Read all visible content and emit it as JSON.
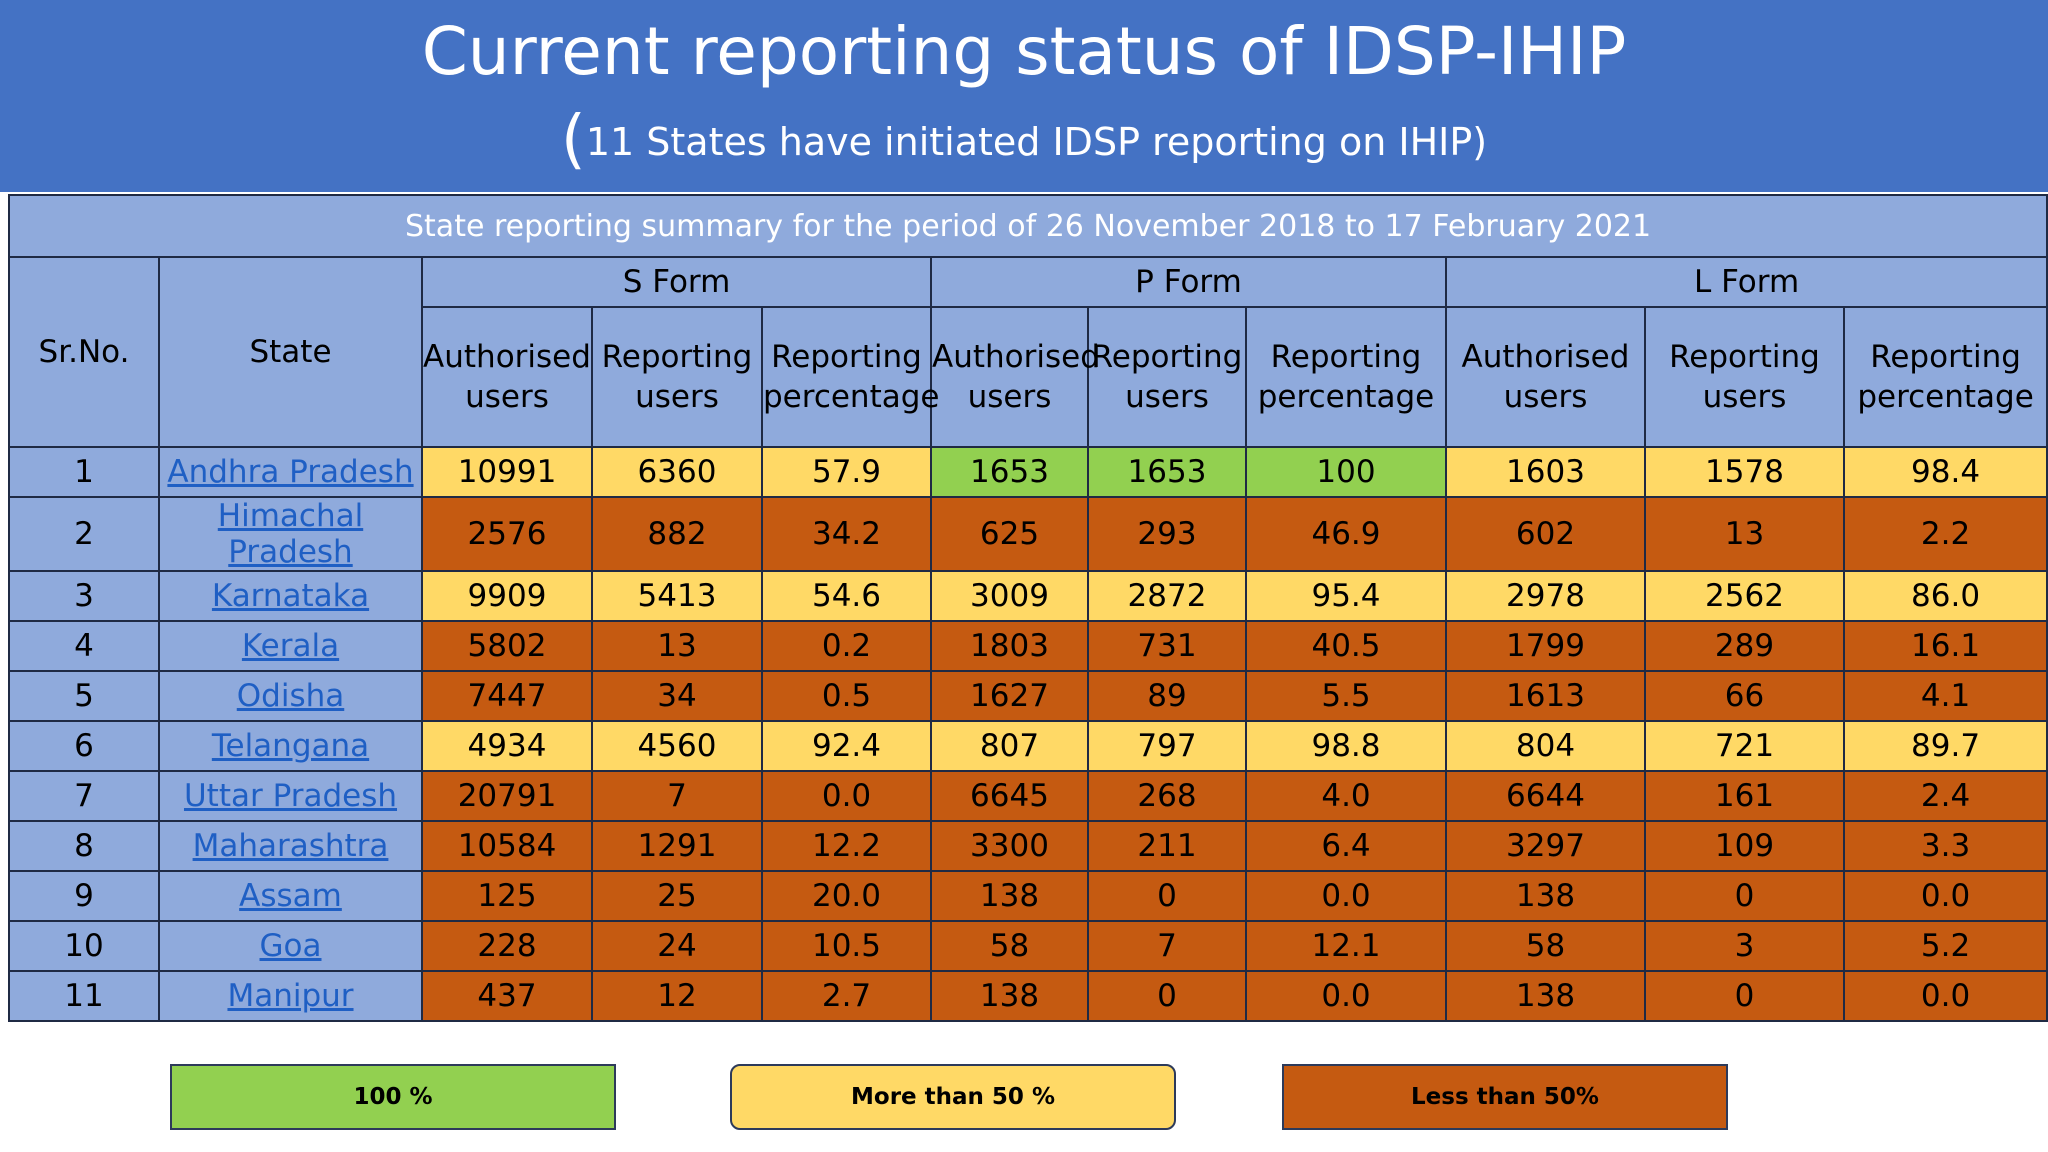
{
  "header": {
    "title": "Current reporting status of IDSP-IHIP",
    "subtitle_paren_open": "(",
    "subtitle": "11 States have initiated IDSP reporting on IHIP)"
  },
  "table": {
    "banner": "State reporting summary for the period of 26 November 2018 to 17 February 2021",
    "col_srno": "Sr.No.",
    "col_state": "State",
    "groups": [
      "S Form",
      "P Form",
      "L Form"
    ],
    "sub_headers": [
      [
        "Authorised",
        "users"
      ],
      [
        "Reporting",
        "users"
      ],
      [
        "Reporting",
        "percentage"
      ]
    ],
    "rows": [
      {
        "sr": "1",
        "state": "Andhra Pradesh",
        "values": [
          "10991",
          "6360",
          "57.9",
          "1653",
          "1653",
          "100",
          "1603",
          "1578",
          "98.4"
        ],
        "status": [
          "yellow",
          "green",
          "yellow"
        ]
      },
      {
        "sr": "2",
        "state": "Himachal Pradesh",
        "values": [
          "2576",
          "882",
          "34.2",
          "625",
          "293",
          "46.9",
          "602",
          "13",
          "2.2"
        ],
        "status": [
          "orange",
          "orange",
          "orange"
        ]
      },
      {
        "sr": "3",
        "state": "Karnataka",
        "values": [
          "9909",
          "5413",
          "54.6",
          "3009",
          "2872",
          "95.4",
          "2978",
          "2562",
          "86.0"
        ],
        "status": [
          "yellow",
          "yellow",
          "yellow"
        ]
      },
      {
        "sr": "4",
        "state": "Kerala",
        "values": [
          "5802",
          "13",
          "0.2",
          "1803",
          "731",
          "40.5",
          "1799",
          "289",
          "16.1"
        ],
        "status": [
          "orange",
          "orange",
          "orange"
        ]
      },
      {
        "sr": "5",
        "state": "Odisha",
        "values": [
          "7447",
          "34",
          "0.5",
          "1627",
          "89",
          "5.5",
          "1613",
          "66",
          "4.1"
        ],
        "status": [
          "orange",
          "orange",
          "orange"
        ]
      },
      {
        "sr": "6",
        "state": "Telangana",
        "values": [
          "4934",
          "4560",
          "92.4",
          "807",
          "797",
          "98.8",
          "804",
          "721",
          "89.7"
        ],
        "status": [
          "yellow",
          "yellow",
          "yellow"
        ]
      },
      {
        "sr": "7",
        "state": "Uttar Pradesh",
        "values": [
          "20791",
          "7",
          "0.0",
          "6645",
          "268",
          "4.0",
          "6644",
          "161",
          "2.4"
        ],
        "status": [
          "orange",
          "orange",
          "orange"
        ]
      },
      {
        "sr": "8",
        "state": "Maharashtra",
        "values": [
          "10584",
          "1291",
          "12.2",
          "3300",
          "211",
          "6.4",
          "3297",
          "109",
          "3.3"
        ],
        "status": [
          "orange",
          "orange",
          "orange"
        ]
      },
      {
        "sr": "9",
        "state": "Assam",
        "values": [
          "125",
          "25",
          "20.0",
          "138",
          "0",
          "0.0",
          "138",
          "0",
          "0.0"
        ],
        "status": [
          "orange",
          "orange",
          "orange"
        ]
      },
      {
        "sr": "10",
        "state": "Goa",
        "values": [
          "228",
          "24",
          "10.5",
          "58",
          "7",
          "12.1",
          "58",
          "3",
          "5.2"
        ],
        "status": [
          "orange",
          "orange",
          "orange"
        ]
      },
      {
        "sr": "11",
        "state": "Manipur",
        "values": [
          "437",
          "12",
          "2.7",
          "138",
          "0",
          "0.0",
          "138",
          "0",
          "0.0"
        ],
        "status": [
          "orange",
          "orange",
          "orange"
        ]
      }
    ]
  },
  "legend": {
    "green": "100 %",
    "yellow": "More than 50 %",
    "orange": "Less than 50%"
  },
  "colors": {
    "header_bg": "#4472c4",
    "table_header_bg": "#8faadc",
    "green": "#92d050",
    "yellow": "#ffd966",
    "orange": "#c55a11",
    "link": "#1f5fc4"
  }
}
